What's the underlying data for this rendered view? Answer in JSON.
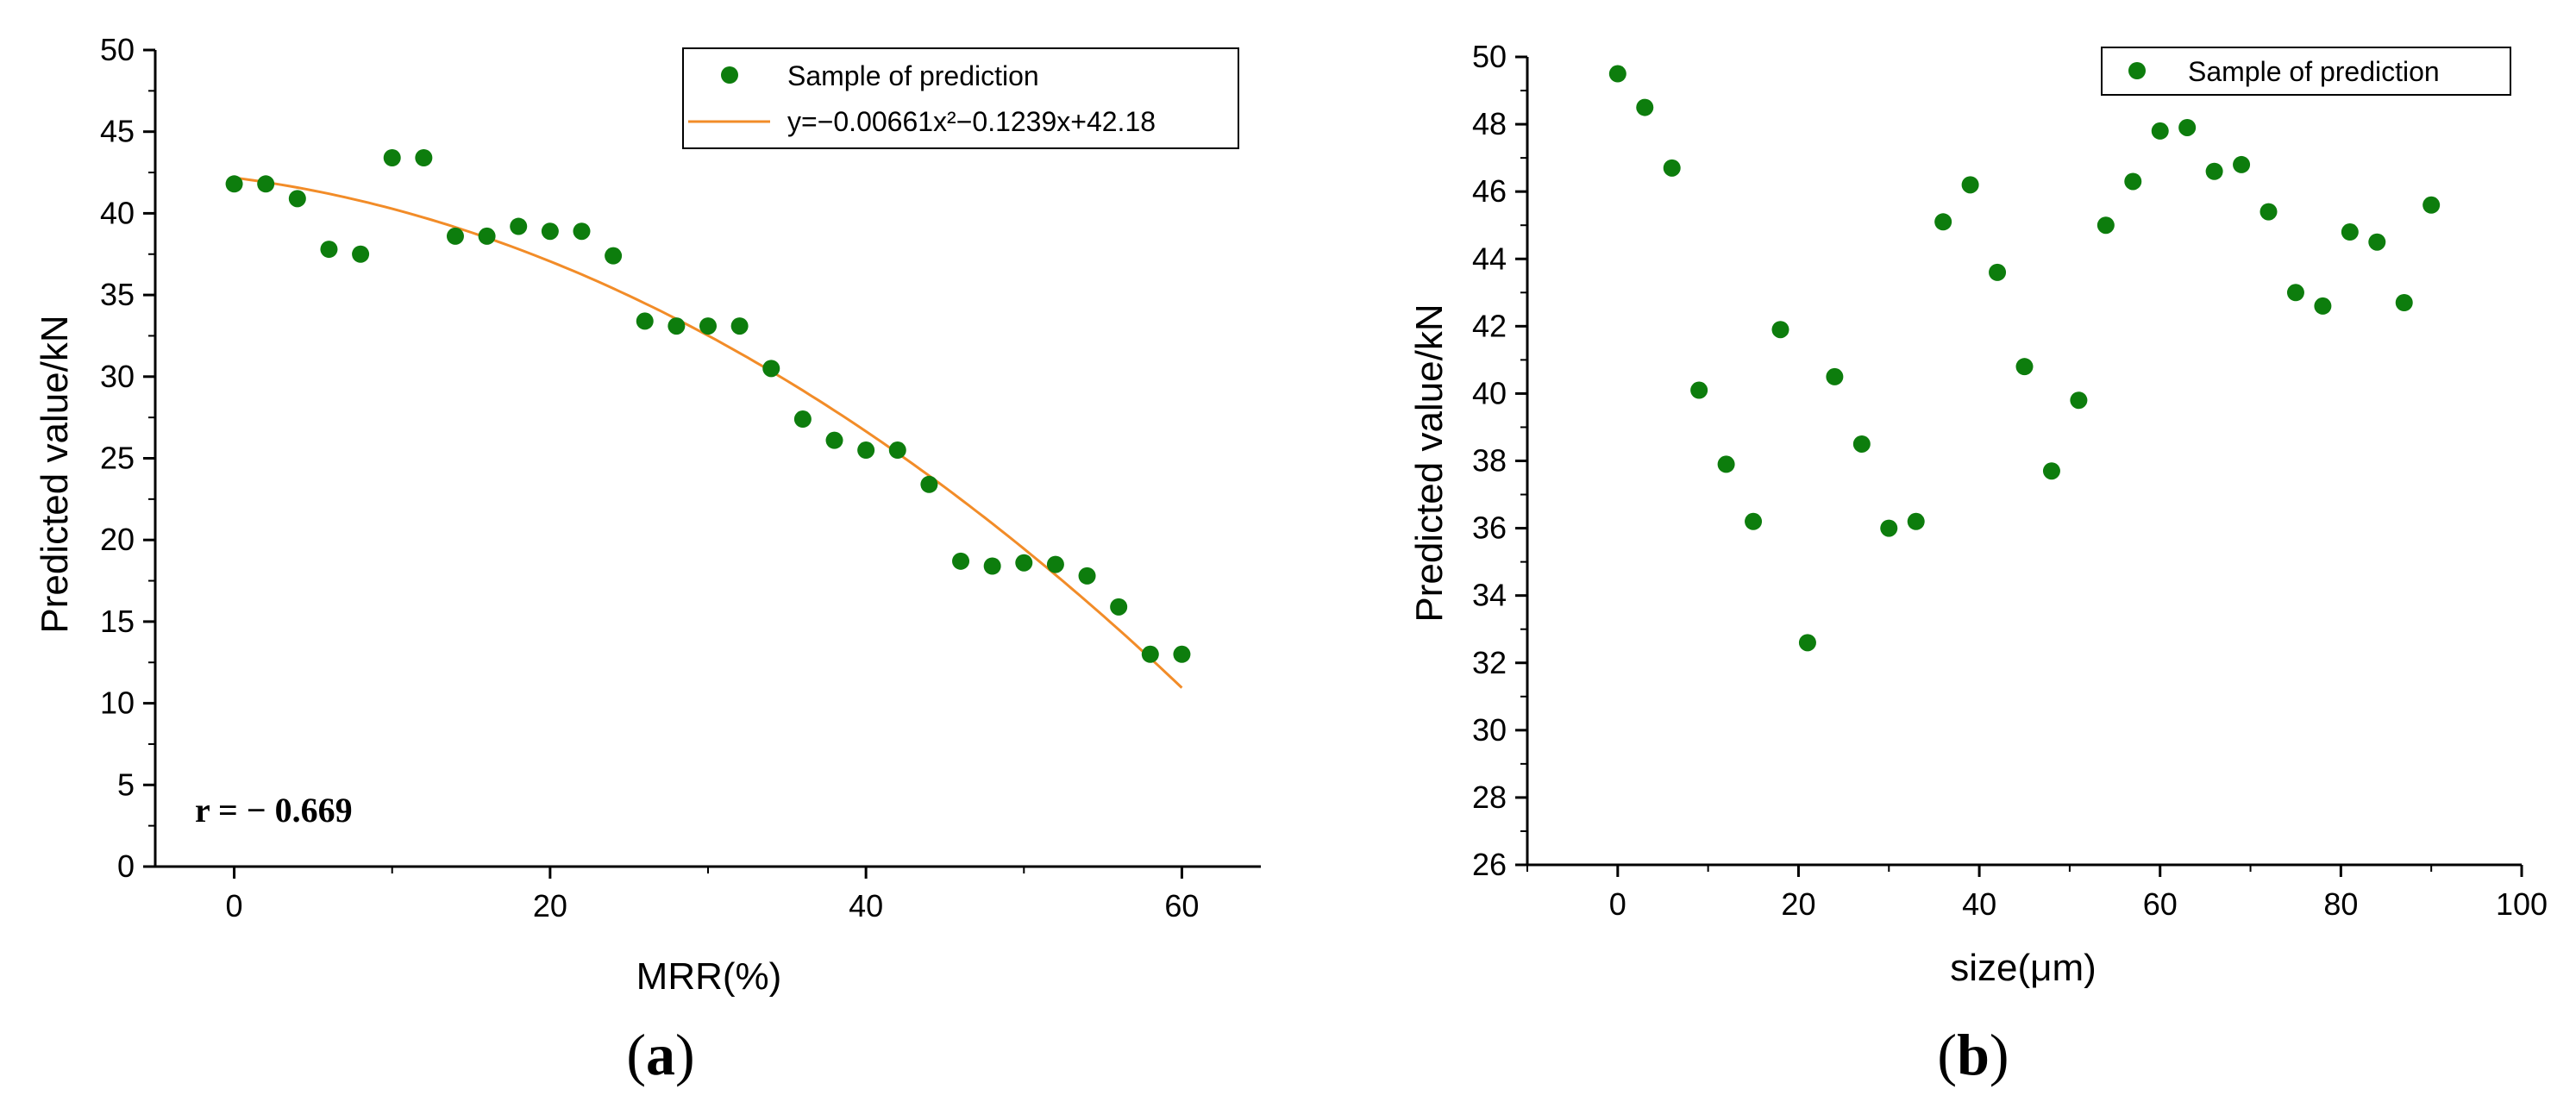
{
  "chart_data": [
    {
      "type": "scatter",
      "panel_id": "a",
      "caption_letter": "a",
      "xlabel": "MRR(%)",
      "ylabel": "Predicted value/kN",
      "xlim": [
        -5,
        65
      ],
      "ylim": [
        0,
        50
      ],
      "xticks": [
        0,
        20,
        40,
        60
      ],
      "yticks": [
        0,
        5,
        10,
        15,
        20,
        25,
        30,
        35,
        40,
        45,
        50
      ],
      "annotation": "r = − 0.669",
      "legend": {
        "position": "top-right",
        "entries": [
          {
            "label": "Sample of prediction",
            "kind": "marker"
          },
          {
            "label": "y=−0.00661x²−0.1239x+42.18",
            "kind": "line"
          }
        ]
      },
      "fit": {
        "a": -0.00661,
        "b": -0.1239,
        "c": 42.18,
        "x_range": [
          0,
          60
        ],
        "color": "#f28c28"
      },
      "series": [
        {
          "name": "Sample of prediction",
          "color": "#0d7d0d",
          "x": [
            0,
            2,
            4,
            6,
            8,
            10,
            12,
            14,
            16,
            18,
            20,
            22,
            24,
            26,
            28,
            30,
            32,
            34,
            36,
            38,
            40,
            42,
            44,
            46,
            48,
            50,
            52,
            54,
            56,
            58,
            60
          ],
          "y": [
            41.8,
            41.8,
            40.9,
            37.8,
            37.5,
            43.4,
            43.4,
            38.6,
            38.6,
            39.2,
            38.9,
            38.9,
            37.4,
            33.4,
            33.1,
            33.1,
            33.1,
            30.5,
            27.4,
            26.1,
            25.5,
            25.5,
            23.4,
            18.7,
            18.4,
            18.6,
            18.5,
            17.8,
            15.9,
            13.0,
            13.0
          ]
        }
      ]
    },
    {
      "type": "scatter",
      "panel_id": "b",
      "caption_letter": "b",
      "xlabel": "size(μm)",
      "ylabel": "Predicted value/kN",
      "xlim": [
        -10,
        100
      ],
      "ylim": [
        26,
        50
      ],
      "xticks": [
        0,
        20,
        40,
        60,
        80,
        100
      ],
      "yticks": [
        26,
        28,
        30,
        32,
        34,
        36,
        38,
        40,
        42,
        44,
        46,
        48,
        50
      ],
      "legend": {
        "position": "top-right",
        "entries": [
          {
            "label": "Sample of prediction",
            "kind": "marker"
          }
        ]
      },
      "series": [
        {
          "name": "Sample of prediction",
          "color": "#0d7d0d",
          "x": [
            0,
            3,
            6,
            9,
            12,
            15,
            18,
            21,
            24,
            27,
            30,
            33,
            36,
            39,
            42,
            45,
            48,
            51,
            54,
            57,
            60,
            63,
            66,
            69,
            72,
            75,
            78,
            81,
            84,
            87,
            90
          ],
          "y": [
            49.5,
            48.5,
            46.7,
            40.1,
            37.9,
            36.2,
            41.9,
            32.6,
            40.5,
            38.5,
            36.0,
            36.2,
            45.1,
            46.2,
            43.6,
            40.8,
            37.7,
            39.8,
            45.0,
            46.3,
            47.8,
            47.9,
            46.6,
            46.8,
            45.4,
            43.0,
            42.6,
            44.8,
            44.5,
            42.7,
            45.6
          ]
        }
      ]
    }
  ]
}
